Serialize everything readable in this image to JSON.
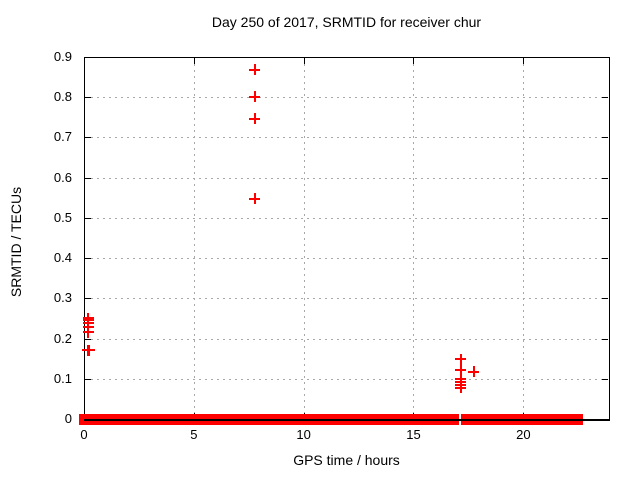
{
  "chart_data": {
    "type": "scatter",
    "title": "Day 250 of 2017, SRMTID for receiver chur",
    "xlabel": "GPS time / hours",
    "ylabel": "SRMTID / TECUs",
    "xlim": [
      0,
      23.9
    ],
    "ylim": [
      0,
      0.9
    ],
    "xticks": {
      "values": [
        0,
        5,
        10,
        15,
        20
      ],
      "labels": [
        "0",
        "5",
        "10",
        "15",
        "20"
      ]
    },
    "yticks": {
      "values": [
        0,
        0.1,
        0.2,
        0.3,
        0.4,
        0.5,
        0.6,
        0.7,
        0.8,
        0.9
      ],
      "labels": [
        "0",
        "0.1",
        "0.2",
        "0.3",
        "0.4",
        "0.5",
        "0.6",
        "0.7",
        "0.8",
        "0.9"
      ]
    },
    "grid": true,
    "legend": "none",
    "marker": "plus",
    "series": [
      {
        "name": "SRMTID",
        "color": "#ff0000",
        "points": [
          [
            0.2,
            0.25
          ],
          [
            0.2,
            0.245
          ],
          [
            0.2,
            0.238
          ],
          [
            0.2,
            0.228
          ],
          [
            0.2,
            0.216
          ],
          [
            0.18,
            0.171
          ],
          [
            0.25,
            0.171
          ],
          [
            7.78,
            0.868
          ],
          [
            7.78,
            0.801
          ],
          [
            7.78,
            0.746
          ],
          [
            7.78,
            0.547
          ],
          [
            17.15,
            0.148
          ],
          [
            17.15,
            0.123
          ],
          [
            17.75,
            0.117
          ],
          [
            17.15,
            0.1
          ],
          [
            17.15,
            0.092
          ],
          [
            17.15,
            0.085
          ],
          [
            17.15,
            0.078
          ]
        ]
      }
    ],
    "zero_line_band": {
      "y": 0,
      "x_start": 0,
      "x_end": 22.5,
      "gaps": [
        [
          17.05,
          17.18
        ]
      ],
      "description": "continuous run of overlapping + markers at SRMTID = 0 across nearly the whole day"
    }
  },
  "colors": {
    "background": "#ffffff",
    "axis": "#000000",
    "grid": "#a8a8a8",
    "marker": "#ff0000",
    "text": "#000000"
  }
}
